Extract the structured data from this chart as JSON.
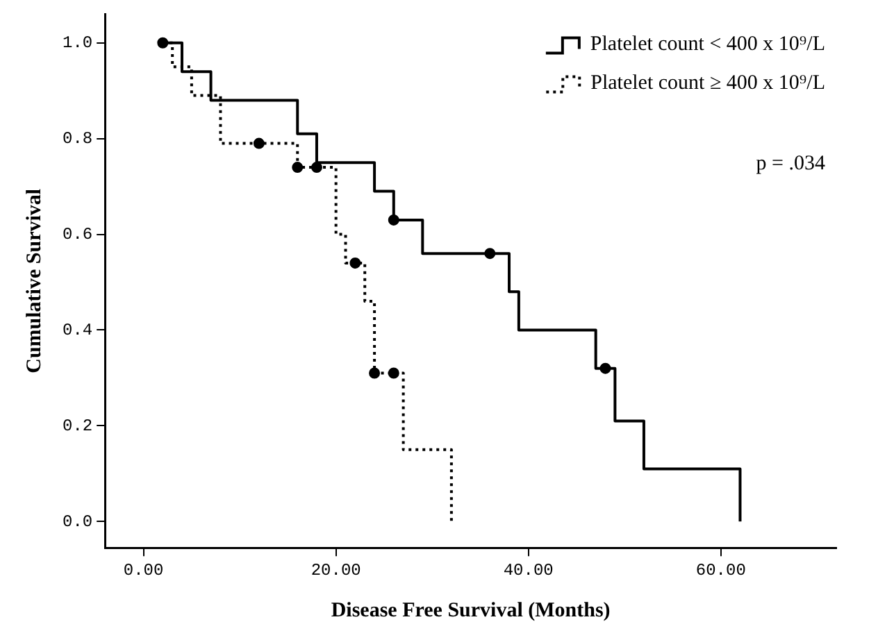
{
  "chart_data": {
    "type": "step",
    "xlabel": "Disease Free Survival (Months)",
    "ylabel": "Cumulative Survival",
    "xlim": [
      -4,
      72
    ],
    "ylim": [
      -0.055,
      1.06
    ],
    "xticks": [
      {
        "value": 0,
        "label": "0.00"
      },
      {
        "value": 20,
        "label": "20.00"
      },
      {
        "value": 40,
        "label": "40.00"
      },
      {
        "value": 60,
        "label": "60.00"
      }
    ],
    "yticks": [
      {
        "value": 0,
        "label": "0.0"
      },
      {
        "value": 0.2,
        "label": "0.2"
      },
      {
        "value": 0.4,
        "label": "0.4"
      },
      {
        "value": 0.6,
        "label": "0.6"
      },
      {
        "value": 0.8,
        "label": "0.8"
      },
      {
        "value": 1,
        "label": "1.0"
      }
    ],
    "grid": false,
    "legend": "top right",
    "annotations": [
      "p = .034"
    ],
    "series": [
      {
        "name": "Platelet count < 400 x 10⁹/L",
        "color": "#000000",
        "line_style": "solid",
        "marker": "none",
        "x": [
          2,
          4,
          7,
          16,
          18,
          24,
          26,
          29,
          38,
          39,
          47,
          49,
          52,
          62
        ],
        "values": [
          1.0,
          0.94,
          0.88,
          0.81,
          0.75,
          0.69,
          0.63,
          0.56,
          0.48,
          0.4,
          0.32,
          0.21,
          0.11,
          0
        ]
      },
      {
        "name": "Platelet count ≥ 400 x 10⁹/L",
        "color": "#000000",
        "line_style": "dotted",
        "marker": "none",
        "x": [
          2,
          3,
          5,
          8,
          16,
          20,
          21,
          23,
          24,
          27,
          32
        ],
        "values": [
          1.0,
          0.95,
          0.89,
          0.79,
          0.74,
          0.6,
          0.54,
          0.46,
          0.31,
          0.15,
          0
        ]
      },
      {
        "type": "scatter",
        "color": "#000000",
        "marker": "circle",
        "x": [
          2,
          26,
          36,
          48
        ],
        "values": [
          1.0,
          0.63,
          0.56,
          0.32
        ]
      },
      {
        "type": "scatter",
        "color": "#000000",
        "marker": "circle",
        "x": [
          12,
          16,
          18,
          22,
          24,
          26
        ],
        "values": [
          0.79,
          0.74,
          0.74,
          0.54,
          0.31,
          0.31
        ]
      }
    ]
  }
}
